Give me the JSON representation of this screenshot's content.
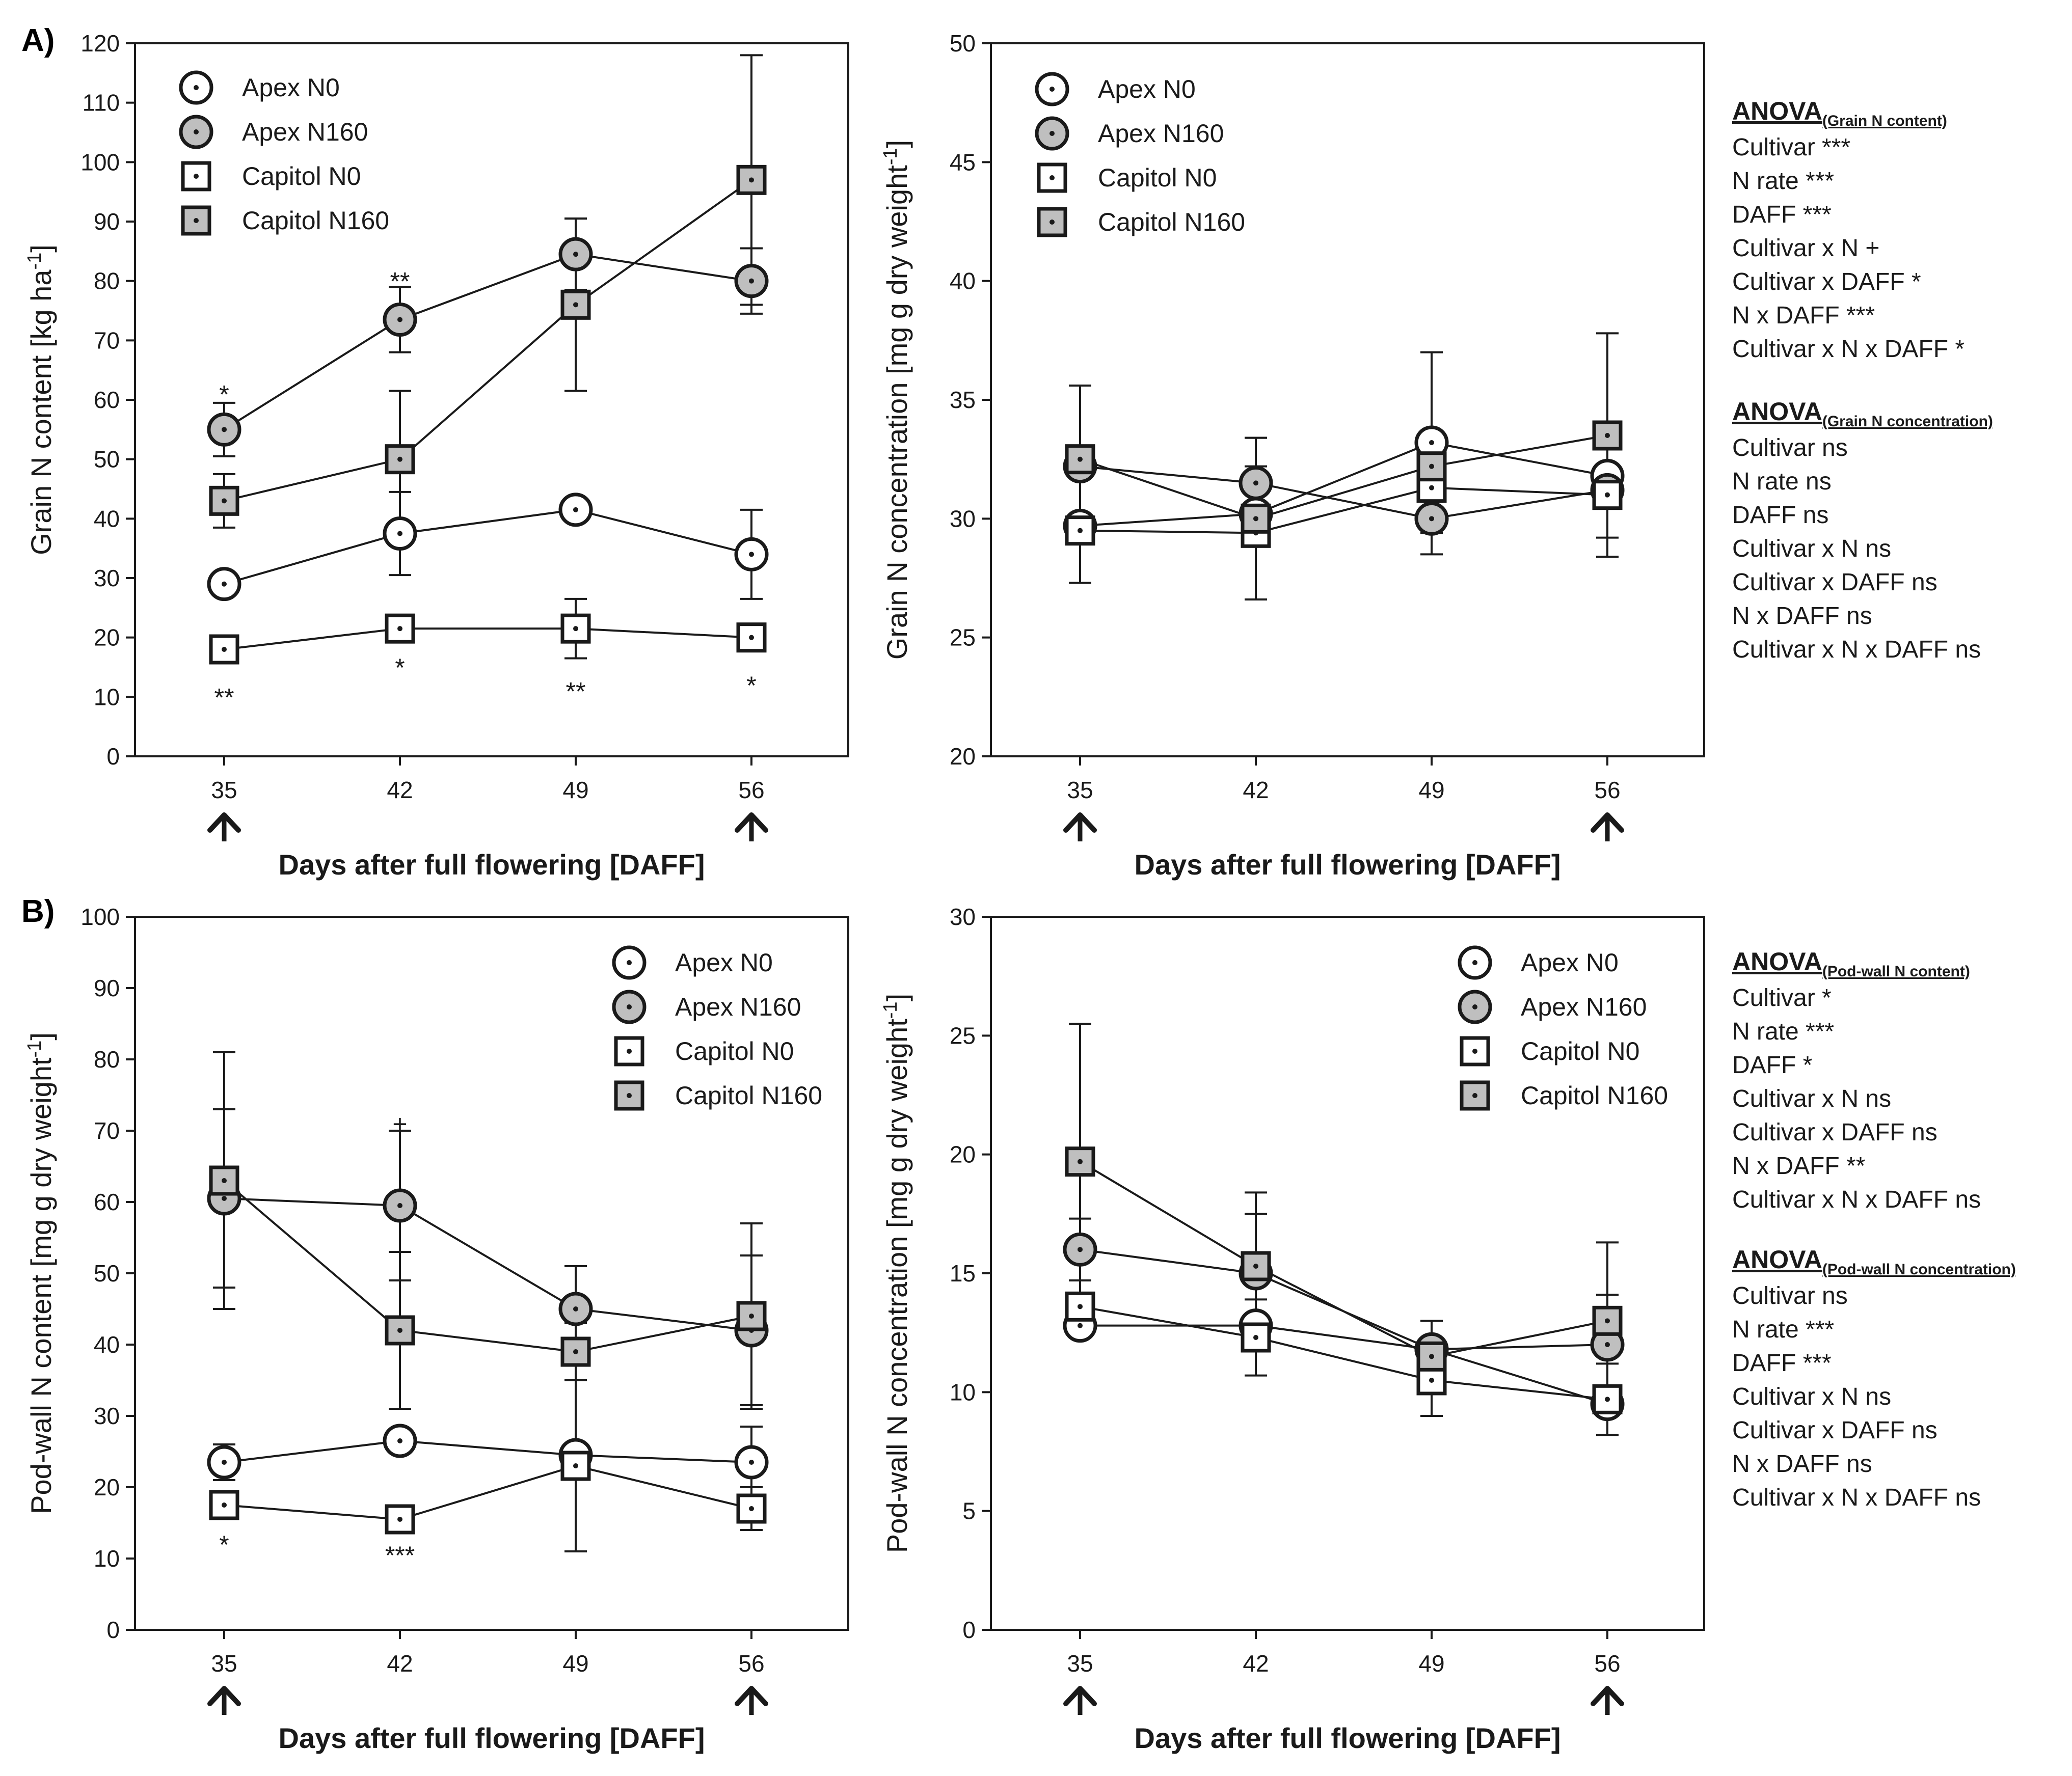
{
  "figure": {
    "panel_labels": [
      "A)",
      "B)"
    ],
    "x_axis_label": "Days after full flowering [DAFF]",
    "arrow_days": [
      35,
      56
    ]
  },
  "legend_entries": [
    "Apex N0",
    "Apex N160",
    "Capitol N0",
    "Capitol N160"
  ],
  "colors": {
    "line": "#1a1a1a",
    "fill_n0": "#ffffff",
    "fill_n160": "#bfbfbf"
  },
  "anova": [
    {
      "title": "ANOVA",
      "subscript": "(Grain N content)",
      "lines": [
        "Cultivar ***",
        "N rate ***",
        "DAFF ***",
        "Cultivar x N +",
        "Cultivar x DAFF *",
        "N x DAFF ***",
        "Cultivar x N x DAFF *"
      ]
    },
    {
      "title": "ANOVA",
      "subscript": "(Grain N concentration)",
      "lines": [
        "Cultivar ns",
        "N rate ns",
        "DAFF ns",
        "Cultivar x N ns",
        "Cultivar x DAFF ns",
        "N x DAFF ns",
        "Cultivar x N x DAFF ns"
      ]
    },
    {
      "title": "ANOVA",
      "subscript": "(Pod-wall N content)",
      "lines": [
        "Cultivar *",
        "N rate ***",
        "DAFF *",
        "Cultivar x N ns",
        "Cultivar x DAFF ns",
        "N x DAFF **",
        "Cultivar x N x DAFF ns"
      ]
    },
    {
      "title": "ANOVA",
      "subscript": "(Pod-wall N concentration)",
      "lines": [
        "Cultivar ns",
        "N rate ***",
        "DAFF ***",
        "Cultivar x N ns",
        "Cultivar x DAFF ns",
        "N x DAFF ns",
        "Cultivar x N x DAFF ns"
      ]
    }
  ],
  "chart_data": [
    {
      "id": "grain-n-content",
      "type": "line",
      "ylabel": "Grain N content [kg ha",
      "ylabel_sup": "-1",
      "ylabel_end": "]",
      "xlabel": "Days after full flowering [DAFF]",
      "x": [
        35,
        42,
        49,
        56
      ],
      "ylim": [
        0,
        120
      ],
      "yticks": [
        0,
        10,
        20,
        30,
        40,
        50,
        60,
        70,
        80,
        90,
        100,
        110,
        120
      ],
      "legend": "top-left",
      "series": [
        {
          "name": "Apex N0",
          "values": [
            29,
            37.5,
            41.5,
            34
          ],
          "err": [
            0,
            7,
            0,
            7.5
          ]
        },
        {
          "name": "Apex N160",
          "values": [
            55,
            73.5,
            84.5,
            80
          ],
          "err": [
            4.5,
            5.5,
            6,
            5.5
          ]
        },
        {
          "name": "Capitol N0",
          "values": [
            18,
            21.5,
            21.5,
            20
          ],
          "err": [
            0,
            0,
            5,
            0
          ]
        },
        {
          "name": "Capitol N160",
          "values": [
            43,
            50,
            76,
            97
          ],
          "err": [
            4.5,
            11.5,
            14.5,
            21
          ]
        }
      ],
      "annotations": [
        {
          "text": "*",
          "x": 35,
          "y": 61
        },
        {
          "text": "**",
          "x": 42,
          "y": 80
        },
        {
          "text": "**",
          "x": 35,
          "y": 10
        },
        {
          "text": "*",
          "x": 42,
          "y": 15
        },
        {
          "text": "**",
          "x": 49,
          "y": 11
        },
        {
          "text": "*",
          "x": 56,
          "y": 12
        }
      ]
    },
    {
      "id": "grain-n-concentration",
      "type": "line",
      "ylabel": "Grain N concentration [mg g dry weight",
      "ylabel_sup": "-1",
      "ylabel_end": "]",
      "xlabel": "Days after full flowering [DAFF]",
      "x": [
        35,
        42,
        49,
        56
      ],
      "ylim": [
        20,
        50
      ],
      "yticks": [
        20,
        25,
        30,
        35,
        40,
        45,
        50
      ],
      "legend": "top-left",
      "series": [
        {
          "name": "Apex N0",
          "values": [
            29.7,
            30.2,
            33.2,
            31.8
          ],
          "err": [
            0,
            0,
            3.8,
            0
          ]
        },
        {
          "name": "Apex N160",
          "values": [
            32.2,
            31.5,
            30,
            31.2
          ],
          "err": [
            0,
            1.9,
            1.5,
            0
          ]
        },
        {
          "name": "Capitol N0",
          "values": [
            29.5,
            29.4,
            31.3,
            31
          ],
          "err": [
            2.2,
            2.8,
            0,
            2.6
          ]
        },
        {
          "name": "Capitol N160",
          "values": [
            32.5,
            30,
            32.2,
            33.5
          ],
          "err": [
            3.1,
            3.4,
            1.5,
            4.3
          ]
        }
      ],
      "annotations": []
    },
    {
      "id": "pod-wall-n-content",
      "type": "line",
      "ylabel": "Pod-wall N content [mg g dry weight",
      "ylabel_sup": "-1",
      "ylabel_end": "]",
      "xlabel": "Days after full flowering [DAFF]",
      "x": [
        35,
        42,
        49,
        56
      ],
      "ylim": [
        0,
        100
      ],
      "yticks": [
        0,
        10,
        20,
        30,
        40,
        50,
        60,
        70,
        80,
        90,
        100
      ],
      "legend": "top-right",
      "series": [
        {
          "name": "Apex N0",
          "values": [
            23.5,
            26.5,
            24.5,
            23.5
          ],
          "err": [
            2.5,
            0,
            0,
            5
          ]
        },
        {
          "name": "Apex N160",
          "values": [
            60.5,
            59.5,
            45,
            42
          ],
          "err": [
            12.5,
            10.5,
            6,
            10.5
          ]
        },
        {
          "name": "Capitol N0",
          "values": [
            17.5,
            15.5,
            23,
            17
          ],
          "err": [
            0,
            0,
            12,
            3
          ]
        },
        {
          "name": "Capitol N160",
          "values": [
            63,
            42,
            39,
            44
          ],
          "err": [
            18,
            11,
            4,
            13
          ]
        }
      ],
      "annotations": [
        {
          "text": "+",
          "x": 42,
          "y": 71
        },
        {
          "text": "*",
          "x": 35,
          "y": 12
        },
        {
          "text": "***",
          "x": 42,
          "y": 10.5
        }
      ]
    },
    {
      "id": "pod-wall-n-concentration",
      "type": "line",
      "ylabel": "Pod-wall N concentration [mg g dry weight",
      "ylabel_sup": "-1",
      "ylabel_end": "]",
      "xlabel": "Days after full flowering [DAFF]",
      "x": [
        35,
        42,
        49,
        56
      ],
      "ylim": [
        0,
        30
      ],
      "yticks": [
        0,
        5,
        10,
        15,
        20,
        25,
        30
      ],
      "legend": "top-right",
      "series": [
        {
          "name": "Apex N0",
          "values": [
            12.8,
            12.8,
            11.8,
            9.5
          ],
          "err": [
            0,
            0,
            0,
            0
          ]
        },
        {
          "name": "Apex N160",
          "values": [
            16,
            15,
            11.8,
            12
          ],
          "err": [
            1.3,
            2.5,
            0,
            2.1
          ]
        },
        {
          "name": "Capitol N0",
          "values": [
            13.6,
            12.3,
            10.5,
            9.7
          ],
          "err": [
            0,
            1.6,
            1.5,
            1.5
          ]
        },
        {
          "name": "Capitol N160",
          "values": [
            19.7,
            15.3,
            11.5,
            13
          ],
          "err": [
            5.8,
            3.1,
            1.5,
            3.3
          ]
        }
      ],
      "annotations": []
    }
  ]
}
